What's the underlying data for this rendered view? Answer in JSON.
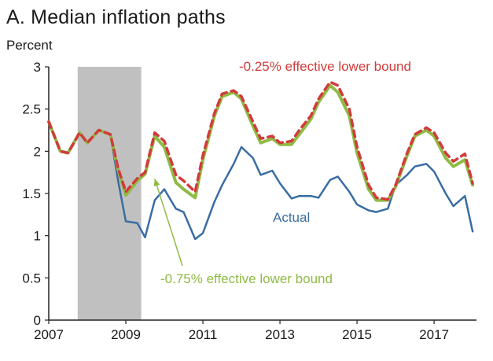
{
  "chart_data": {
    "type": "line",
    "title": "A. Median inflation paths",
    "ylabel": "Percent",
    "xlabel": "",
    "xlim": [
      2007,
      2018.1
    ],
    "ylim": [
      0,
      3
    ],
    "x_ticks": [
      "2007",
      "2009",
      "2011",
      "2013",
      "2015",
      "2017"
    ],
    "x_tick_values": [
      2007,
      2009,
      2011,
      2013,
      2015,
      2017
    ],
    "y_ticks": [
      "0",
      "0.5",
      "1",
      "1.5",
      "2",
      "2.5",
      "3"
    ],
    "y_tick_values": [
      0,
      0.5,
      1,
      1.5,
      2,
      2.5,
      3
    ],
    "grid": false,
    "shaded_period": [
      2007.75,
      2009.4
    ],
    "colors": {
      "shade": "#c0c0c0",
      "actual": "#3a6da3",
      "elb_025": "#d23b3b",
      "elb_075": "#8fbb45"
    },
    "annotations": [
      {
        "text": "-0.25% effective lower bound",
        "color": "#d23b3b",
        "series": "elb_025"
      },
      {
        "text": "Actual",
        "color": "#3a6da3",
        "series": "actual"
      },
      {
        "text": "-0.75% effective lower bound",
        "color": "#8fbb45",
        "series": "elb_075"
      }
    ],
    "series": [
      {
        "key": "actual",
        "name": "Actual",
        "x": [
          2007.0,
          2007.3,
          2007.5,
          2007.8,
          2008.0,
          2008.3,
          2008.6,
          2008.8,
          2009.0,
          2009.3,
          2009.5,
          2009.75,
          2010.0,
          2010.3,
          2010.5,
          2010.8,
          2011.0,
          2011.3,
          2011.5,
          2011.8,
          2012.0,
          2012.3,
          2012.5,
          2012.8,
          2013.0,
          2013.3,
          2013.5,
          2013.8,
          2014.0,
          2014.3,
          2014.5,
          2014.8,
          2015.0,
          2015.3,
          2015.5,
          2015.8,
          2016.0,
          2016.3,
          2016.5,
          2016.8,
          2017.0,
          2017.3,
          2017.5,
          2017.8,
          2018.0
        ],
        "y": [
          2.35,
          2.0,
          1.98,
          2.22,
          2.1,
          2.25,
          2.2,
          1.65,
          1.17,
          1.15,
          0.98,
          1.42,
          1.55,
          1.32,
          1.28,
          0.96,
          1.03,
          1.4,
          1.6,
          1.85,
          2.05,
          1.92,
          1.72,
          1.77,
          1.62,
          1.44,
          1.47,
          1.47,
          1.45,
          1.66,
          1.7,
          1.52,
          1.37,
          1.3,
          1.28,
          1.32,
          1.6,
          1.72,
          1.82,
          1.85,
          1.76,
          1.5,
          1.35,
          1.47,
          1.05
        ]
      },
      {
        "key": "elb_025",
        "name": "-0.25% effective lower bound",
        "x": [
          2007.0,
          2007.3,
          2007.5,
          2007.8,
          2008.0,
          2008.3,
          2008.6,
          2008.8,
          2009.0,
          2009.3,
          2009.5,
          2009.75,
          2010.0,
          2010.3,
          2010.5,
          2010.8,
          2011.0,
          2011.3,
          2011.5,
          2011.8,
          2012.0,
          2012.3,
          2012.5,
          2012.8,
          2013.0,
          2013.3,
          2013.5,
          2013.8,
          2014.0,
          2014.3,
          2014.5,
          2014.8,
          2015.0,
          2015.3,
          2015.5,
          2015.8,
          2016.0,
          2016.3,
          2016.5,
          2016.8,
          2017.0,
          2017.3,
          2017.5,
          2017.8,
          2018.0
        ],
        "y": [
          2.35,
          2.0,
          1.98,
          2.22,
          2.1,
          2.25,
          2.2,
          1.8,
          1.52,
          1.68,
          1.75,
          2.22,
          2.12,
          1.72,
          1.65,
          1.52,
          1.95,
          2.45,
          2.68,
          2.72,
          2.65,
          2.35,
          2.15,
          2.18,
          2.1,
          2.12,
          2.25,
          2.42,
          2.62,
          2.82,
          2.78,
          2.5,
          2.05,
          1.6,
          1.45,
          1.43,
          1.6,
          1.98,
          2.2,
          2.28,
          2.22,
          1.98,
          1.88,
          1.97,
          1.62
        ]
      },
      {
        "key": "elb_075",
        "name": "-0.75% effective lower bound",
        "x": [
          2007.0,
          2007.3,
          2007.5,
          2007.8,
          2008.0,
          2008.3,
          2008.6,
          2008.8,
          2009.0,
          2009.3,
          2009.5,
          2009.75,
          2010.0,
          2010.3,
          2010.5,
          2010.8,
          2011.0,
          2011.3,
          2011.5,
          2011.8,
          2012.0,
          2012.3,
          2012.5,
          2012.8,
          2013.0,
          2013.3,
          2013.5,
          2013.8,
          2014.0,
          2014.3,
          2014.5,
          2014.8,
          2015.0,
          2015.3,
          2015.5,
          2015.8,
          2016.0,
          2016.3,
          2016.5,
          2016.8,
          2017.0,
          2017.3,
          2017.5,
          2017.8,
          2018.0
        ],
        "y": [
          2.35,
          2.0,
          1.98,
          2.22,
          2.1,
          2.25,
          2.2,
          1.78,
          1.48,
          1.65,
          1.73,
          2.18,
          2.05,
          1.63,
          1.55,
          1.45,
          1.9,
          2.42,
          2.65,
          2.7,
          2.62,
          2.3,
          2.1,
          2.15,
          2.08,
          2.08,
          2.2,
          2.38,
          2.58,
          2.78,
          2.7,
          2.42,
          1.98,
          1.55,
          1.42,
          1.42,
          1.58,
          1.95,
          2.18,
          2.25,
          2.18,
          1.92,
          1.82,
          1.9,
          1.6
        ]
      }
    ]
  }
}
